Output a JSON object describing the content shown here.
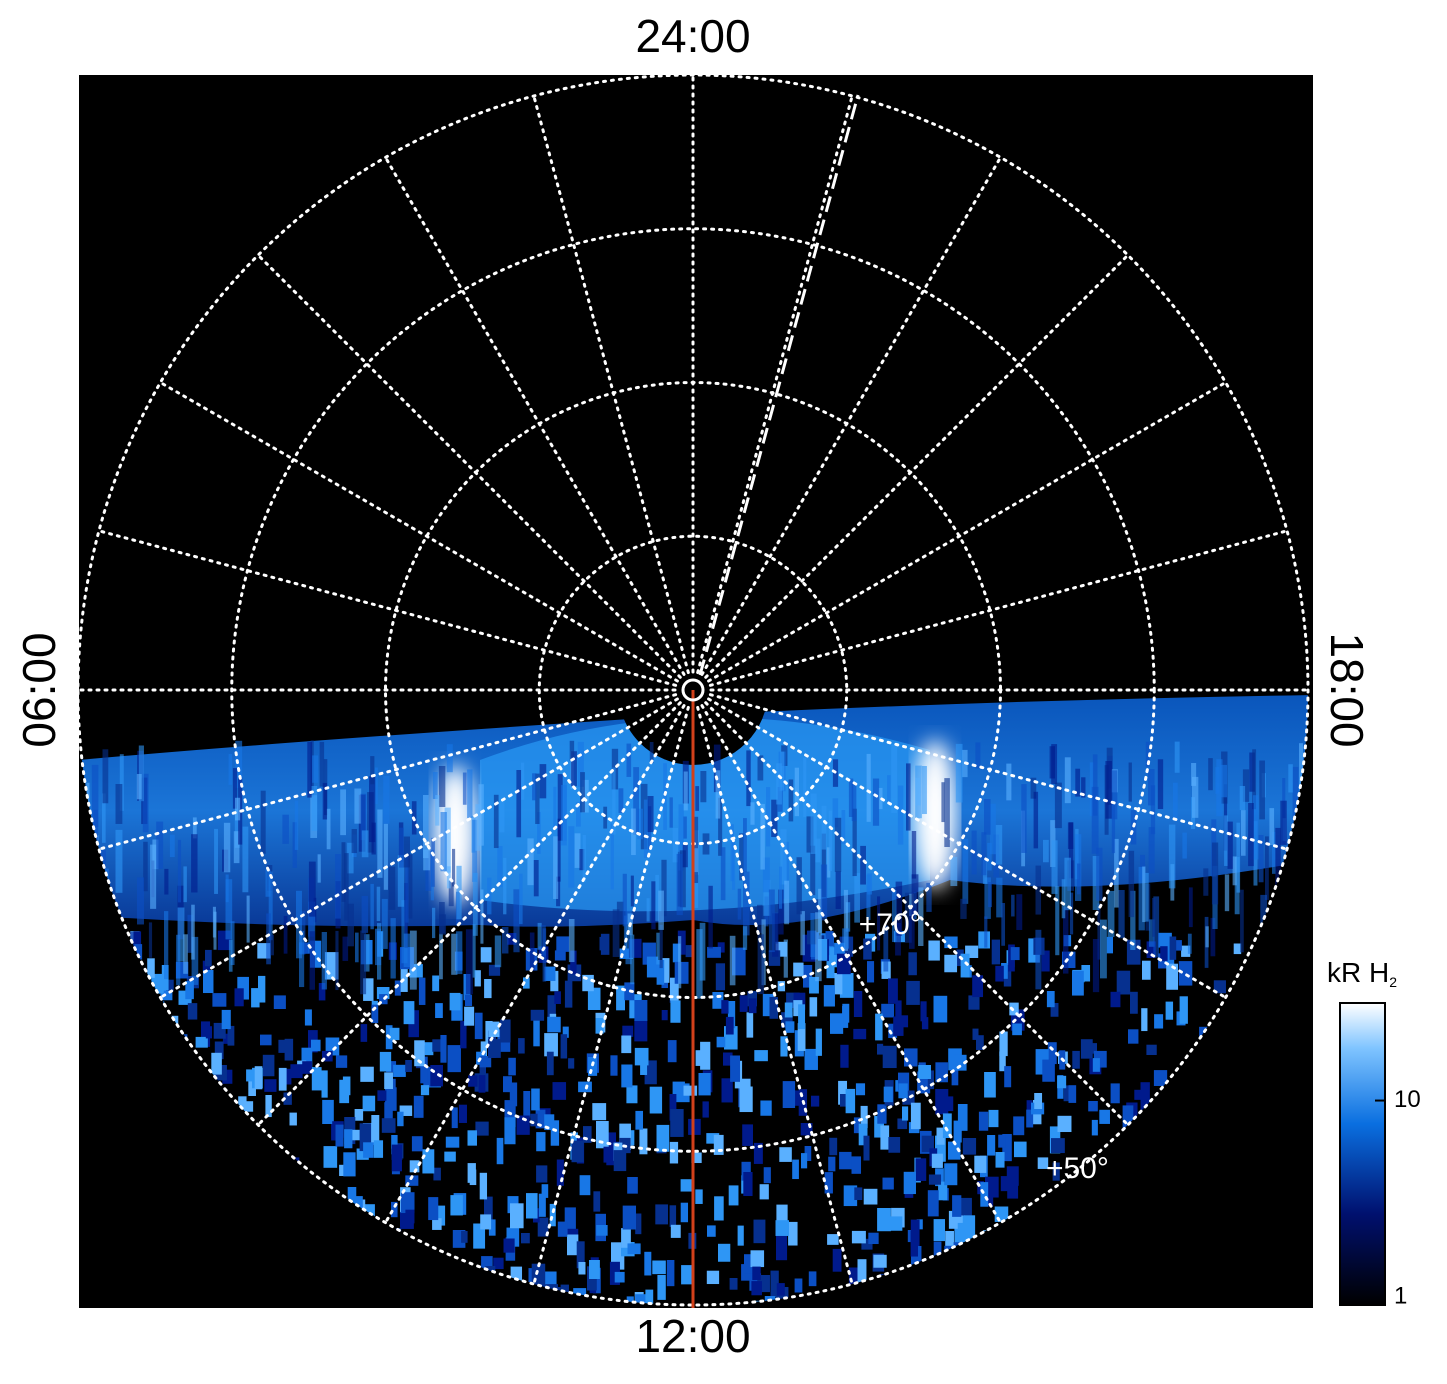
{
  "chart_data": {
    "type": "polar-map",
    "time_labels": [
      {
        "value": 24,
        "label": "24:00"
      },
      {
        "value": 6,
        "label": "06:00"
      },
      {
        "value": 18,
        "label": "18:00"
      },
      {
        "value": 12,
        "label": "12:00"
      }
    ],
    "latlim": [
      90,
      50
    ],
    "lat_rings": [
      80,
      70,
      60,
      50
    ],
    "lat_labels": [
      {
        "value": 70,
        "label": "+70°"
      },
      {
        "value": 50,
        "label": "+50°"
      }
    ],
    "meridians": [
      1,
      2,
      3,
      4,
      5,
      6,
      7,
      8,
      9,
      10,
      11,
      12,
      13,
      14,
      15,
      16,
      17,
      18,
      19,
      20,
      21,
      22,
      23,
      24
    ],
    "colorbar": {
      "label": "kR H",
      "label_subscript": "2",
      "scale": "log",
      "lim": [
        1,
        30
      ],
      "ticks": [
        1,
        10
      ]
    }
  }
}
